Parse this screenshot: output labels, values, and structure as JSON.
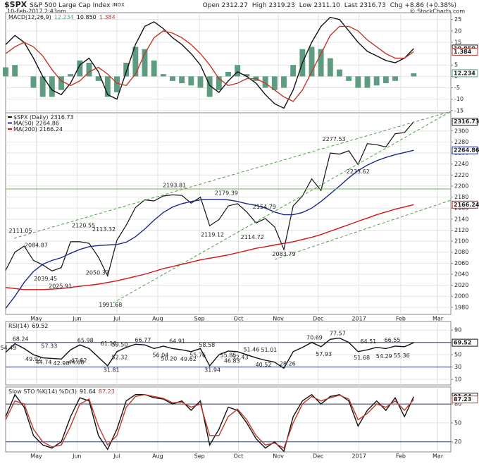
{
  "header": {
    "symbol": "$SPX",
    "subtitle": "S&P 500 Large Cap Index",
    "exchange": "INDX",
    "date": "10-Feb-2017 2:43pm",
    "quote": [
      {
        "label": "Open",
        "value": "2312.27"
      },
      {
        "label": "High",
        "value": "2319.23"
      },
      {
        "label": "Low",
        "value": "2311.10"
      },
      {
        "label": "Last",
        "value": "2316.73"
      },
      {
        "label": "Chg",
        "value": "+8.86 (+0.38%)"
      }
    ],
    "credit": "© StockCharts.com"
  },
  "chart_data": [
    {
      "type": "line",
      "label": "MACD(12,26,9)",
      "readouts": [
        "12.234",
        "10.850",
        "1.384"
      ],
      "xlim": [
        0,
        48
      ],
      "ylim": [
        -16,
        28
      ],
      "yticks": [
        -15,
        -10,
        -5,
        0,
        5,
        10,
        15,
        20,
        25
      ],
      "grid": true,
      "x": [
        0,
        1,
        2,
        3,
        4,
        5,
        6,
        7,
        8,
        9,
        10,
        11,
        12,
        13,
        14,
        15,
        16,
        17,
        18,
        19,
        20,
        21,
        22,
        23,
        24,
        25,
        26,
        27,
        28,
        29,
        30,
        31,
        32,
        33,
        34,
        35,
        36,
        37,
        38,
        39,
        40,
        41,
        42,
        43,
        44
      ],
      "series": [
        {
          "kind": "bar",
          "color": "#5e9c82",
          "values": [
            4,
            5,
            0,
            -5,
            -9,
            -9,
            -6,
            1,
            7,
            6,
            -2,
            -9,
            -7,
            6,
            13,
            12,
            7,
            1,
            -2,
            -3,
            -4,
            -5,
            -9,
            -6,
            2,
            5,
            1,
            -2,
            -5,
            -6,
            -5,
            5,
            12,
            13,
            12,
            8,
            3,
            -2,
            -5,
            -5,
            -4,
            -3,
            -2,
            0,
            1.384
          ]
        },
        {
          "kind": "line",
          "color": "#111111",
          "values": [
            14,
            18,
            15,
            8,
            0,
            -6,
            -8,
            -3,
            5,
            8,
            2,
            -8,
            -10,
            2,
            14,
            22,
            24,
            21,
            17,
            14,
            10,
            5,
            -4,
            -7,
            -2,
            2,
            0,
            -3,
            -8,
            -12,
            -14,
            -6,
            6,
            15,
            22,
            26,
            25,
            20,
            15,
            11,
            9,
            7,
            6,
            8,
            12.234
          ]
        },
        {
          "kind": "line",
          "color": "#c0392b",
          "values": [
            10,
            13,
            15,
            13,
            9,
            3,
            -2,
            -4,
            -2,
            2,
            4,
            1,
            -3,
            -4,
            1,
            10,
            17,
            20,
            19,
            17,
            14,
            10,
            5,
            -1,
            -4,
            -3,
            -1,
            -1,
            -3,
            -6,
            -9,
            -11,
            -6,
            2,
            10,
            18,
            22,
            22,
            20,
            16,
            13,
            10,
            8,
            8,
            10.85
          ]
        }
      ]
    },
    {
      "type": "line",
      "xlim": [
        0,
        48
      ],
      "ylim": [
        1967,
        2333
      ],
      "yticks": [
        1980,
        2000,
        2020,
        2040,
        2060,
        2080,
        2100,
        2120,
        2140,
        2160,
        2180,
        2200,
        2220,
        2240,
        2260,
        2280,
        2300
      ],
      "grid": true,
      "xticks": [
        {
          "value": 3.3,
          "label": "May"
        },
        {
          "value": 7.7,
          "label": "Jun"
        },
        {
          "value": 12,
          "label": "Jul"
        },
        {
          "value": 16.4,
          "label": "Aug"
        },
        {
          "value": 20.9,
          "label": "Sep"
        },
        {
          "value": 25.1,
          "label": "Oct"
        },
        {
          "value": 29.4,
          "label": "Nov"
        },
        {
          "value": 33.7,
          "label": "Dec"
        },
        {
          "value": 38.1,
          "label": "2017"
        },
        {
          "value": 42.6,
          "label": "Feb"
        },
        {
          "value": 46.6,
          "label": "Mar"
        }
      ],
      "x": [
        0,
        1,
        2,
        3,
        4,
        5,
        6,
        7,
        8,
        9,
        10,
        11,
        12,
        13,
        14,
        15,
        16,
        17,
        18,
        19,
        20,
        21,
        22,
        23,
        24,
        25,
        26,
        27,
        28,
        29,
        30,
        31,
        32,
        33,
        34,
        35,
        36,
        37,
        38,
        39,
        40,
        41,
        42,
        43,
        44
      ],
      "series": [
        {
          "kind": "line",
          "name": "$SPX (Daily)",
          "color": "#111111",
          "values": [
            2047,
            2080,
            2091,
            2065,
            2057,
            2046,
            2052,
            2099,
            2099,
            2096,
            2071,
            2037,
            2102,
            2129,
            2161,
            2175,
            2173,
            2182,
            2184,
            2183,
            2169,
            2180,
            2128,
            2139,
            2164,
            2168,
            2153,
            2133,
            2141,
            2126,
            2085,
            2164,
            2182,
            2213,
            2192,
            2260,
            2258,
            2264,
            2239,
            2277,
            2275,
            2271,
            2295,
            2297,
            2316.73
          ]
        },
        {
          "kind": "line",
          "name": "MA(50)",
          "color": "#1b2a8a",
          "values": [
            1978,
            2000,
            2025,
            2045,
            2058,
            2065,
            2070,
            2078,
            2085,
            2090,
            2092,
            2093,
            2094,
            2098,
            2108,
            2122,
            2138,
            2152,
            2162,
            2168,
            2172,
            2175,
            2176,
            2176,
            2175,
            2172,
            2168,
            2165,
            2160,
            2153,
            2148,
            2148,
            2152,
            2160,
            2172,
            2186,
            2200,
            2215,
            2228,
            2238,
            2246,
            2252,
            2257,
            2261,
            2264.86
          ]
        },
        {
          "kind": "line",
          "name": "MA(200)",
          "color": "#d21414",
          "values": [
            2016,
            2014,
            2012,
            2012,
            2012,
            2013,
            2014,
            2016,
            2018,
            2020,
            2022,
            2025,
            2028,
            2032,
            2036,
            2040,
            2045,
            2050,
            2054,
            2058,
            2062,
            2066,
            2069,
            2072,
            2075,
            2079,
            2083,
            2087,
            2090,
            2093,
            2096,
            2099,
            2103,
            2107,
            2112,
            2118,
            2124,
            2130,
            2136,
            2142,
            2148,
            2153,
            2158,
            2162,
            2166.24
          ]
        }
      ],
      "annotations": [
        {
          "x": 1.6,
          "y": 2111.05,
          "label": "2111.05"
        },
        {
          "x": 3.3,
          "y": 2084.87,
          "label": "2084.87"
        },
        {
          "x": 4.3,
          "y": 2039.45,
          "label": "2039.45"
        },
        {
          "x": 5.9,
          "y": 2025.91,
          "label": "2025.91"
        },
        {
          "x": 8.4,
          "y": 2120.55,
          "label": "2120.55"
        },
        {
          "x": 10.6,
          "y": 2113.32,
          "label": "2113.32"
        },
        {
          "x": 9.9,
          "y": 2050.37,
          "label": "2050.37"
        },
        {
          "x": 11.3,
          "y": 1991.68,
          "label": "1991.68"
        },
        {
          "x": 18.2,
          "y": 2193.81,
          "label": "2193.81"
        },
        {
          "x": 23.8,
          "y": 2179.39,
          "label": "2179.39"
        },
        {
          "x": 22.3,
          "y": 2119.12,
          "label": "2119.12"
        },
        {
          "x": 27.9,
          "y": 2154.79,
          "label": "2154.79"
        },
        {
          "x": 26.6,
          "y": 2114.72,
          "label": "2114.72"
        },
        {
          "x": 30.0,
          "y": 2083.79,
          "label": "2083.79"
        },
        {
          "x": 35.4,
          "y": 2277.53,
          "label": "2277.53"
        },
        {
          "x": 38.0,
          "y": 2233.62,
          "label": "2233.62"
        }
      ]
    },
    {
      "type": "line",
      "label": "RSI(14)",
      "xlim": [
        0,
        48
      ],
      "ylim": [
        1,
        104
      ],
      "yticks": [
        10,
        30,
        50,
        70,
        90
      ],
      "grid": true,
      "reference_lines": [
        30,
        70
      ],
      "x": [
        0,
        1,
        2,
        3,
        4,
        5,
        6,
        7,
        8,
        9,
        10,
        11,
        12,
        13,
        14,
        15,
        16,
        17,
        18,
        19,
        20,
        21,
        22,
        23,
        24,
        25,
        26,
        27,
        28,
        29,
        30,
        31,
        32,
        33,
        34,
        35,
        36,
        37,
        38,
        39,
        40,
        41,
        42,
        43,
        44
      ],
      "series": [
        {
          "kind": "line",
          "color": "#111111",
          "values": [
            54,
            68,
            60,
            50,
            45,
            44,
            43,
            58,
            66,
            60,
            46,
            32,
            55,
            62,
            67,
            66,
            60,
            64,
            60,
            58,
            55,
            60,
            32,
            50,
            56,
            55,
            50,
            45,
            41,
            38,
            28,
            55,
            62,
            70,
            63,
            75,
            77,
            70,
            55,
            58,
            62,
            60,
            64,
            63,
            69.52
          ]
        }
      ],
      "annotations": [
        {
          "x": 1.6,
          "y": 68.24,
          "label": "68.24"
        },
        {
          "x": 4.7,
          "y": 57.33,
          "label": "57.33"
        },
        {
          "x": 3.0,
          "y": 49.92,
          "label": "49.92"
        },
        {
          "x": 4.1,
          "y": 44.74,
          "label": "44.74"
        },
        {
          "x": 6.0,
          "y": 42.98,
          "label": "42.98"
        },
        {
          "x": 0.3,
          "y": 54.49,
          "label": "54.49"
        },
        {
          "x": 8.6,
          "y": 65.98,
          "label": "65.98"
        },
        {
          "x": 7.9,
          "y": 47.62,
          "label": "47.62"
        },
        {
          "x": 7.6,
          "y": 44.68,
          "label": "44.68"
        },
        {
          "x": 11.1,
          "y": 61.16,
          "label": "61.16"
        },
        {
          "x": 12.3,
          "y": 59.5,
          "label": "59.50"
        },
        {
          "x": 11.4,
          "y": 31.81,
          "label": "31.81"
        },
        {
          "x": 12.3,
          "y": 52.32,
          "label": "52.32"
        },
        {
          "x": 14.8,
          "y": 66.77,
          "label": "66.77"
        },
        {
          "x": 16.7,
          "y": 56.04,
          "label": "56.04"
        },
        {
          "x": 17.6,
          "y": 50.2,
          "label": "50.20"
        },
        {
          "x": 18.5,
          "y": 64.91,
          "label": "64.91"
        },
        {
          "x": 19.7,
          "y": 49.62,
          "label": "49.62"
        },
        {
          "x": 20.7,
          "y": 55.76,
          "label": "55.76"
        },
        {
          "x": 21.7,
          "y": 58.58,
          "label": "58.58"
        },
        {
          "x": 22.3,
          "y": 31.94,
          "label": "31.94"
        },
        {
          "x": 24.0,
          "y": 55.85,
          "label": "55.85"
        },
        {
          "x": 25.3,
          "y": 52.43,
          "label": "52.43"
        },
        {
          "x": 26.5,
          "y": 51.46,
          "label": "51.46"
        },
        {
          "x": 24.4,
          "y": 46.83,
          "label": "46.83"
        },
        {
          "x": 27.8,
          "y": 40.52,
          "label": "40.52"
        },
        {
          "x": 28.4,
          "y": 51.01,
          "label": "51.01"
        },
        {
          "x": 30.4,
          "y": 28.26,
          "label": "28.26"
        },
        {
          "x": 33.3,
          "y": 70.69,
          "label": "70.69"
        },
        {
          "x": 34.3,
          "y": 57.93,
          "label": "57.93"
        },
        {
          "x": 35.8,
          "y": 77.57,
          "label": "77.57"
        },
        {
          "x": 38.4,
          "y": 51.68,
          "label": "51.68"
        },
        {
          "x": 39.1,
          "y": 64.51,
          "label": "64.51"
        },
        {
          "x": 40.8,
          "y": 54.29,
          "label": "54.29"
        },
        {
          "x": 41.7,
          "y": 66.55,
          "label": "66.55"
        },
        {
          "x": 42.7,
          "y": 55.36,
          "label": "55.36"
        }
      ]
    },
    {
      "type": "line",
      "label": "Slow STO %K(14) %D(3)",
      "xlim": [
        0,
        48
      ],
      "ylim": [
        4,
        107
      ],
      "yticks": [
        20,
        50,
        80
      ],
      "grid": true,
      "reference_lines": [
        20,
        80
      ],
      "xticks": [
        {
          "value": 3.3,
          "label": "May"
        },
        {
          "value": 7.7,
          "label": "Jun"
        },
        {
          "value": 12,
          "label": "Jul"
        },
        {
          "value": 16.4,
          "label": "Aug"
        },
        {
          "value": 20.9,
          "label": "Sep"
        },
        {
          "value": 25.1,
          "label": "Oct"
        },
        {
          "value": 29.4,
          "label": "Nov"
        },
        {
          "value": 33.7,
          "label": "Dec"
        },
        {
          "value": 38.1,
          "label": "2017"
        },
        {
          "value": 42.6,
          "label": "Feb"
        },
        {
          "value": 46.6,
          "label": "Mar"
        }
      ],
      "x": [
        0,
        1,
        2,
        3,
        4,
        5,
        6,
        7,
        8,
        9,
        10,
        11,
        12,
        13,
        14,
        15,
        16,
        17,
        18,
        19,
        20,
        21,
        22,
        23,
        24,
        25,
        26,
        27,
        28,
        29,
        30,
        31,
        32,
        33,
        34,
        35,
        36,
        37,
        38,
        39,
        40,
        41,
        42,
        43,
        44
      ],
      "series": [
        {
          "kind": "line",
          "color": "#111111",
          "values": [
            60,
            95,
            75,
            30,
            15,
            10,
            20,
            60,
            90,
            85,
            30,
            8,
            40,
            85,
            95,
            95,
            90,
            88,
            80,
            85,
            70,
            85,
            15,
            40,
            75,
            70,
            50,
            25,
            10,
            20,
            5,
            60,
            85,
            95,
            80,
            92,
            95,
            85,
            45,
            70,
            85,
            70,
            90,
            60,
            91.64
          ]
        },
        {
          "kind": "line",
          "color": "#c0392b",
          "values": [
            55,
            85,
            80,
            40,
            20,
            12,
            15,
            45,
            80,
            88,
            45,
            15,
            30,
            75,
            92,
            95,
            92,
            89,
            82,
            83,
            75,
            80,
            30,
            30,
            60,
            72,
            55,
            30,
            15,
            18,
            10,
            50,
            80,
            92,
            85,
            90,
            94,
            88,
            55,
            65,
            80,
            75,
            85,
            70,
            87.23
          ]
        }
      ]
    }
  ]
}
